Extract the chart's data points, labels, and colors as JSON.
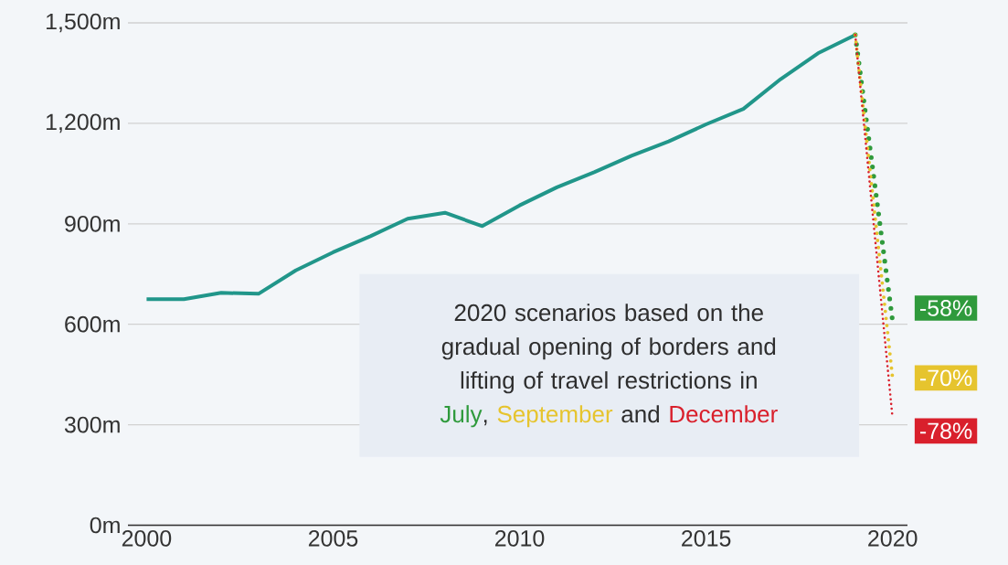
{
  "chart_data": {
    "type": "line",
    "x": [
      2000,
      2001,
      2002,
      2003,
      2004,
      2005,
      2006,
      2007,
      2008,
      2009,
      2010,
      2011,
      2012,
      2013,
      2014,
      2015,
      2016,
      2017,
      2018,
      2019,
      2020
    ],
    "series": [
      {
        "color": "#21968a",
        "line_style": "solid",
        "values": [
          675,
          675,
          694,
          691,
          761,
          815,
          863,
          915,
          933,
          893,
          955,
          1009,
          1054,
          1103,
          1146,
          1197,
          1243,
          1332,
          1409,
          1464,
          null
        ]
      },
      {
        "name": "July",
        "color": "#2f9a3c",
        "line_style": "dotted",
        "values": [
          null,
          null,
          null,
          null,
          null,
          null,
          null,
          null,
          null,
          null,
          null,
          null,
          null,
          null,
          null,
          null,
          null,
          null,
          null,
          1464,
          610
        ]
      },
      {
        "name": "September",
        "color": "#e6c42e",
        "line_style": "dotted",
        "values": [
          null,
          null,
          null,
          null,
          null,
          null,
          null,
          null,
          null,
          null,
          null,
          null,
          null,
          null,
          null,
          null,
          null,
          null,
          null,
          1464,
          440
        ]
      },
      {
        "name": "December",
        "color": "#d9202c",
        "line_style": "dotted",
        "values": [
          null,
          null,
          null,
          null,
          null,
          null,
          null,
          null,
          null,
          null,
          null,
          null,
          null,
          null,
          null,
          null,
          null,
          null,
          null,
          1464,
          320
        ]
      }
    ],
    "xlim": [
      1999.5,
      2020.4
    ],
    "ylim": [
      0,
      1500
    ],
    "xticks": [
      2000,
      2005,
      2010,
      2015,
      2020
    ],
    "yticks": [
      {
        "value": 0,
        "label": "0m"
      },
      {
        "value": 300,
        "label": "300m"
      },
      {
        "value": 600,
        "label": "600m"
      },
      {
        "value": 900,
        "label": "900m"
      },
      {
        "value": 1200,
        "label": "1,200m"
      },
      {
        "value": 1500,
        "label": "1,500m"
      }
    ],
    "grid": "y",
    "annotations": [
      "2020 scenarios based on the gradual opening of borders and lifting of travel restrictions in",
      ",",
      "and",
      "-58%",
      "-70%",
      "-78%"
    ]
  }
}
